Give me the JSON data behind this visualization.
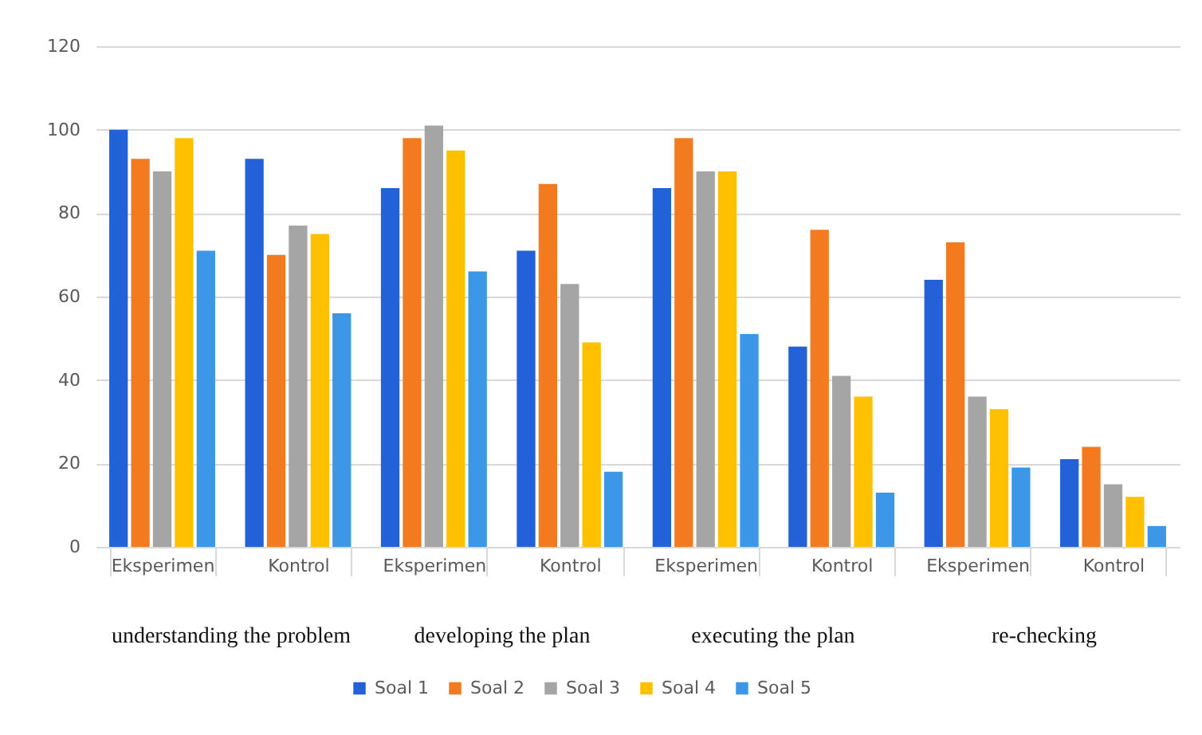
{
  "chart_data": {
    "type": "bar",
    "categories": [
      "Eksperimen",
      "Kontrol",
      "Eksperimen",
      "Kontrol",
      "Eksperimen",
      "Kontrol",
      "Eksperimen",
      "Kontrol"
    ],
    "series": [
      {
        "name": "Soal 1",
        "color": "#2361d9",
        "values": [
          100,
          93,
          86,
          71,
          86,
          48,
          64,
          21
        ]
      },
      {
        "name": "Soal 2",
        "color": "#f47a20",
        "values": [
          93,
          70,
          98,
          87,
          98,
          76,
          73,
          24
        ]
      },
      {
        "name": "Soal 3",
        "color": "#a5a5a5",
        "values": [
          90,
          77,
          101,
          63,
          90,
          41,
          36,
          15
        ]
      },
      {
        "name": "Soal 4",
        "color": "#ffc000",
        "values": [
          98,
          75,
          95,
          49,
          90,
          36,
          33,
          12
        ]
      },
      {
        "name": "Soal 5",
        "color": "#3d97e8",
        "values": [
          71,
          56,
          66,
          18,
          51,
          13,
          19,
          5
        ]
      }
    ],
    "ylim": [
      0,
      120
    ],
    "yticks": [
      0,
      20,
      40,
      60,
      80,
      100,
      120
    ],
    "grid": "y",
    "legend": "bottom",
    "annotations": [
      "understanding the problem",
      "developing the plan",
      "executing the plan",
      "re-checking"
    ]
  }
}
